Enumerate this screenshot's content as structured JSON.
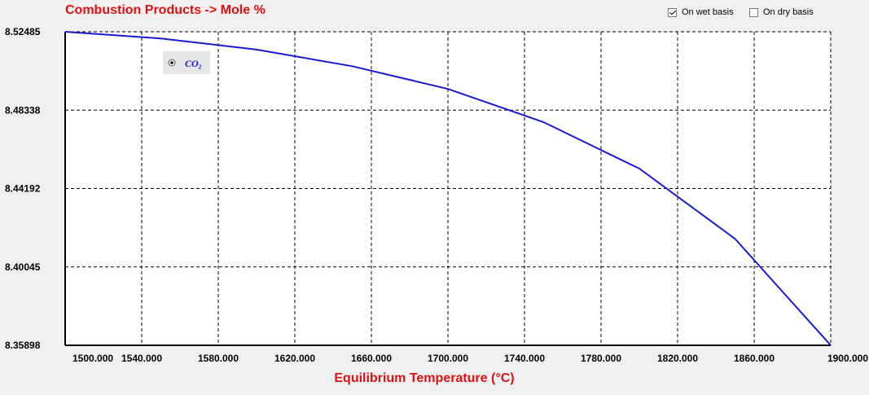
{
  "title": "Combustion Products -> Mole %",
  "options": {
    "wet_label": "On wet basis",
    "wet_checked": true,
    "dry_label": "On dry basis",
    "dry_checked": false
  },
  "colors": {
    "title": "#e01010",
    "series": "#1a1acc",
    "grid": "#000000"
  },
  "chart_data": {
    "type": "line",
    "xlabel": "Equilibrium Temperature (°C)",
    "xlim": [
      1500,
      1900
    ],
    "ylim": [
      8.35898,
      8.52485
    ],
    "x_ticks": [
      "1500.000",
      "1540.000",
      "1580.000",
      "1620.000",
      "1660.000",
      "1700.000",
      "1740.000",
      "1780.000",
      "1820.000",
      "1860.000",
      "1900.000"
    ],
    "y_ticks": [
      "8.52485",
      "8.48338",
      "8.44192",
      "8.40045",
      "8.35898"
    ],
    "grid": true,
    "legend_placement": "top-left",
    "series": [
      {
        "name": "CO₂",
        "x": [
          1500,
          1550,
          1600,
          1650,
          1700,
          1750,
          1800,
          1850,
          1900
        ],
        "y": [
          8.52485,
          8.52133,
          8.51541,
          8.50664,
          8.49461,
          8.47702,
          8.45248,
          8.41534,
          8.35898
        ]
      }
    ]
  }
}
